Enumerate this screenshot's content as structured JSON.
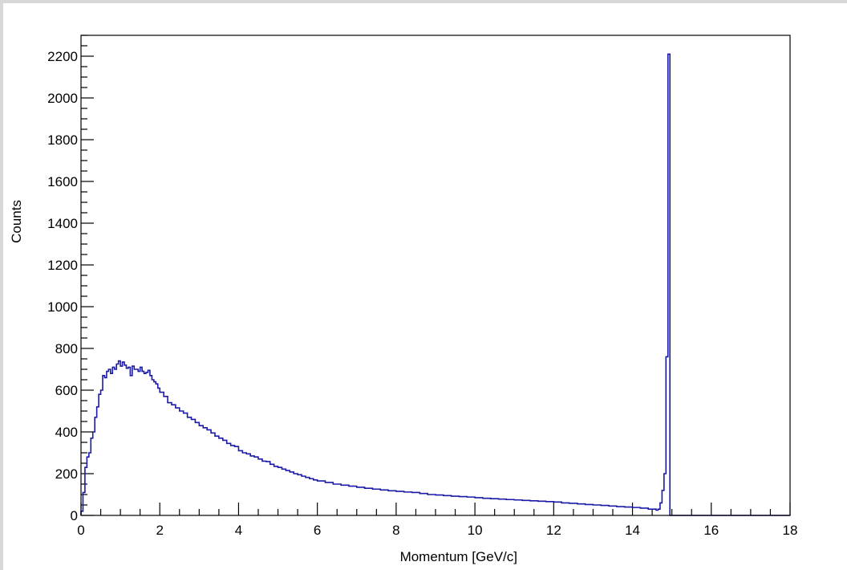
{
  "chart_data": {
    "type": "line",
    "step": true,
    "title": "",
    "xlabel": "Momentum [GeV/c]",
    "ylabel": "Counts",
    "xlim": [
      0,
      18
    ],
    "ylim": [
      0,
      2300
    ],
    "grid": false,
    "legend": "none",
    "x_tick_labels": [
      "0",
      "2",
      "4",
      "6",
      "8",
      "10",
      "12",
      "14",
      "16",
      "18"
    ],
    "y_tick_labels": [
      "0",
      "200",
      "400",
      "600",
      "800",
      "1000",
      "1200",
      "1400",
      "1600",
      "1800",
      "2000",
      "2200"
    ],
    "x_ticks": [
      0,
      2,
      4,
      6,
      8,
      10,
      12,
      14,
      16,
      18
    ],
    "y_ticks": [
      0,
      200,
      400,
      600,
      800,
      1000,
      1200,
      1400,
      1600,
      1800,
      2000,
      2200
    ],
    "bin_width": 0.05,
    "series": [
      {
        "color": "#1a1aa6",
        "x": [
          0.0,
          0.05,
          0.1,
          0.15,
          0.2,
          0.25,
          0.3,
          0.35,
          0.4,
          0.45,
          0.5,
          0.55,
          0.6,
          0.65,
          0.7,
          0.75,
          0.8,
          0.85,
          0.9,
          0.95,
          1.0,
          1.05,
          1.1,
          1.15,
          1.2,
          1.25,
          1.3,
          1.35,
          1.4,
          1.45,
          1.5,
          1.55,
          1.6,
          1.65,
          1.7,
          1.75,
          1.8,
          1.85,
          1.9,
          1.95,
          2.0,
          2.1,
          2.2,
          2.3,
          2.4,
          2.5,
          2.6,
          2.7,
          2.8,
          2.9,
          3.0,
          3.1,
          3.2,
          3.3,
          3.4,
          3.5,
          3.6,
          3.7,
          3.8,
          3.9,
          4.0,
          4.1,
          4.2,
          4.3,
          4.4,
          4.5,
          4.6,
          4.7,
          4.8,
          4.9,
          5.0,
          5.1,
          5.2,
          5.3,
          5.4,
          5.5,
          5.6,
          5.7,
          5.8,
          5.9,
          6.0,
          6.2,
          6.4,
          6.6,
          6.8,
          7.0,
          7.2,
          7.4,
          7.6,
          7.8,
          8.0,
          8.2,
          8.4,
          8.6,
          8.8,
          9.0,
          9.2,
          9.4,
          9.6,
          9.8,
          10.0,
          10.2,
          10.4,
          10.6,
          10.8,
          11.0,
          11.2,
          11.4,
          11.6,
          11.8,
          12.0,
          12.2,
          12.4,
          12.6,
          12.8,
          13.0,
          13.2,
          13.4,
          13.6,
          13.8,
          14.0,
          14.2,
          14.4,
          14.6,
          14.65,
          14.7,
          14.75,
          14.8,
          14.85,
          14.9,
          14.95,
          15.0,
          18.0
        ],
        "y": [
          20,
          110,
          230,
          280,
          300,
          370,
          400,
          470,
          520,
          580,
          600,
          670,
          660,
          690,
          700,
          680,
          710,
          700,
          725,
          740,
          715,
          735,
          720,
          705,
          710,
          670,
          715,
          700,
          700,
          690,
          710,
          690,
          680,
          685,
          695,
          670,
          650,
          640,
          630,
          610,
          590,
          570,
          540,
          530,
          515,
          500,
          490,
          470,
          460,
          445,
          430,
          420,
          410,
          395,
          380,
          370,
          360,
          345,
          335,
          330,
          310,
          300,
          295,
          285,
          280,
          270,
          260,
          258,
          245,
          235,
          230,
          222,
          215,
          208,
          200,
          195,
          188,
          182,
          176,
          170,
          165,
          158,
          150,
          145,
          140,
          135,
          130,
          126,
          122,
          118,
          115,
          112,
          110,
          105,
          100,
          98,
          95,
          92,
          90,
          88,
          85,
          82,
          80,
          78,
          76,
          74,
          72,
          70,
          68,
          66,
          64,
          60,
          58,
          55,
          52,
          50,
          48,
          45,
          42,
          40,
          38,
          35,
          30,
          25,
          30,
          60,
          120,
          200,
          760,
          2210,
          0,
          0,
          0
        ]
      }
    ]
  }
}
